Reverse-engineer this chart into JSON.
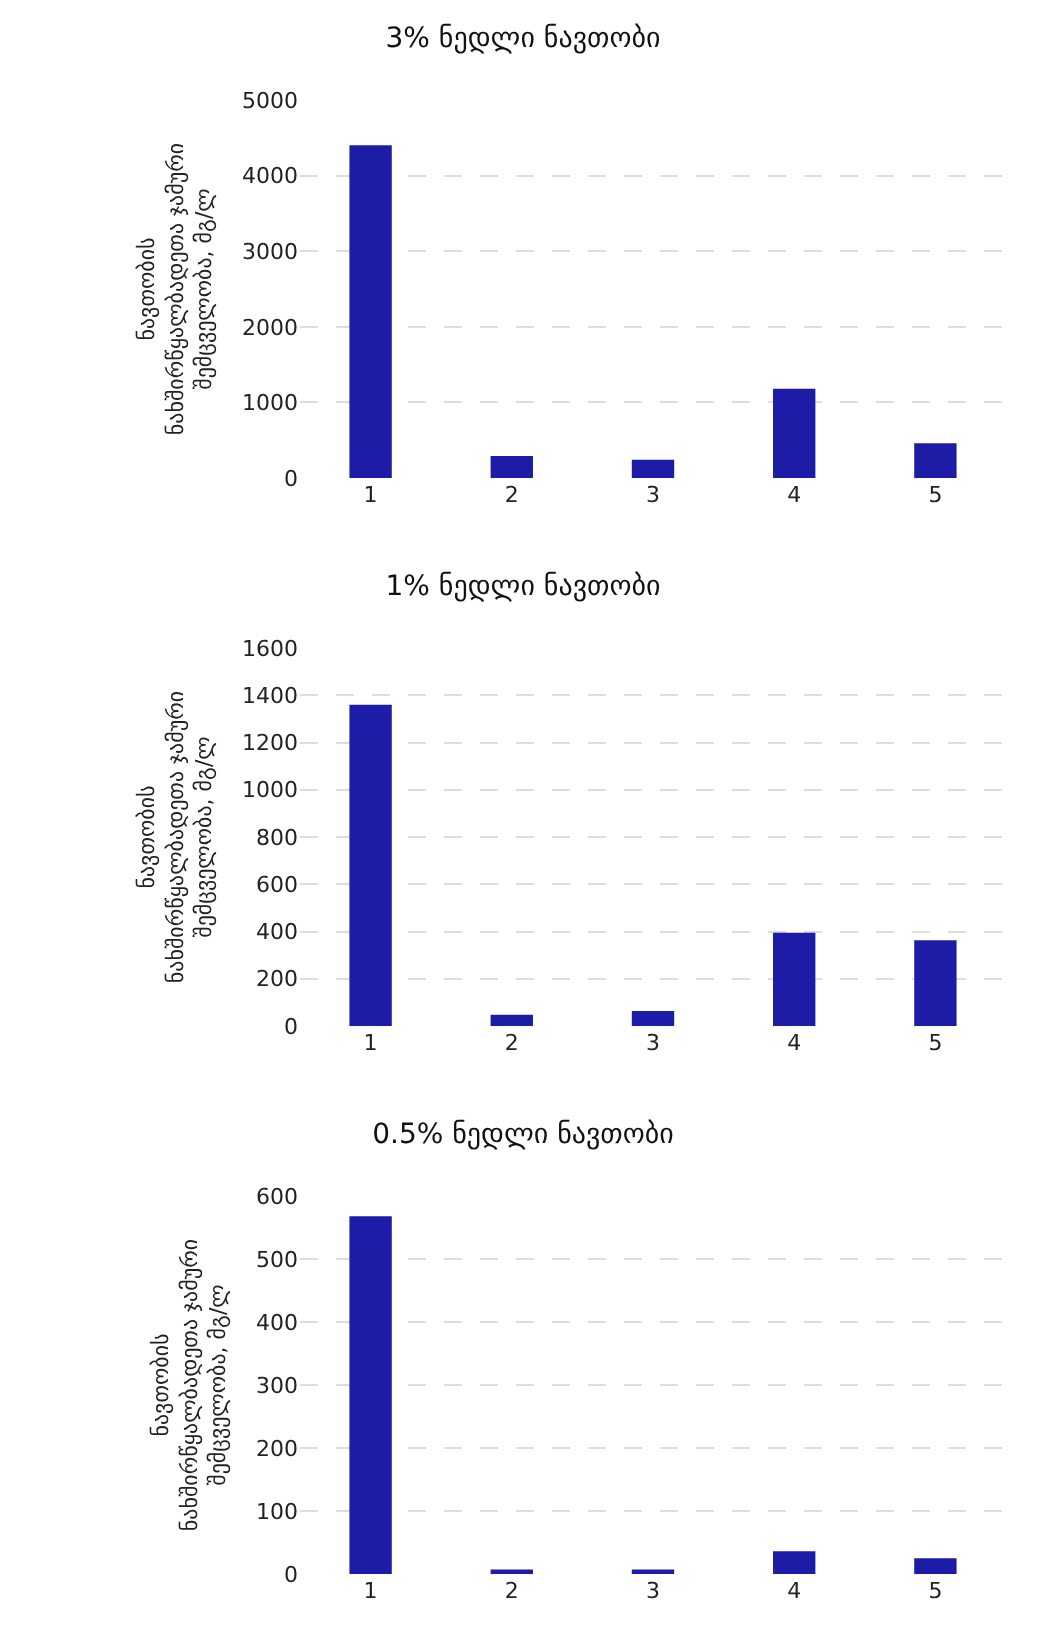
{
  "chart_data": [
    {
      "type": "bar",
      "title": "3% ნედლი ნავთობი",
      "ylabel": "ნავთობის\nნახშირწყალბადეთა ჯამური\nშემცველობა, მგ/ლ",
      "categories": [
        "1",
        "2",
        "3",
        "4",
        "5"
      ],
      "values": [
        4400,
        290,
        240,
        1180,
        460
      ],
      "color": "#1c1ca6",
      "ylim": [
        0,
        5000
      ],
      "yticks": [
        0,
        1000,
        2000,
        3000,
        4000,
        5000
      ],
      "grid": "y"
    },
    {
      "type": "bar",
      "title": "1% ნედლი ნავთობი",
      "ylabel": "ნავთობის\nნახშირწყალბადეთა ჯამური\nშემცველობა, მგ/ლ",
      "categories": [
        "1",
        "2",
        "3",
        "4",
        "5"
      ],
      "values": [
        1360,
        48,
        64,
        395,
        363
      ],
      "color": "#1c1ca6",
      "ylim": [
        0,
        1600
      ],
      "yticks": [
        0,
        200,
        400,
        600,
        800,
        1000,
        1200,
        1400,
        1600
      ],
      "grid": "y"
    },
    {
      "type": "bar",
      "title": "0.5% ნედლი ნავთობი",
      "ylabel": "ნავთობის\nნახშირწყალბადეთა ჯამური\nშემცველობა, მგ/ლ",
      "categories": [
        "1",
        "2",
        "3",
        "4",
        "5"
      ],
      "values": [
        568,
        7,
        7,
        36,
        25
      ],
      "color": "#1c1ca6",
      "ylim": [
        0,
        600
      ],
      "yticks": [
        0,
        100,
        200,
        300,
        400,
        500,
        600
      ],
      "grid": "y"
    }
  ]
}
